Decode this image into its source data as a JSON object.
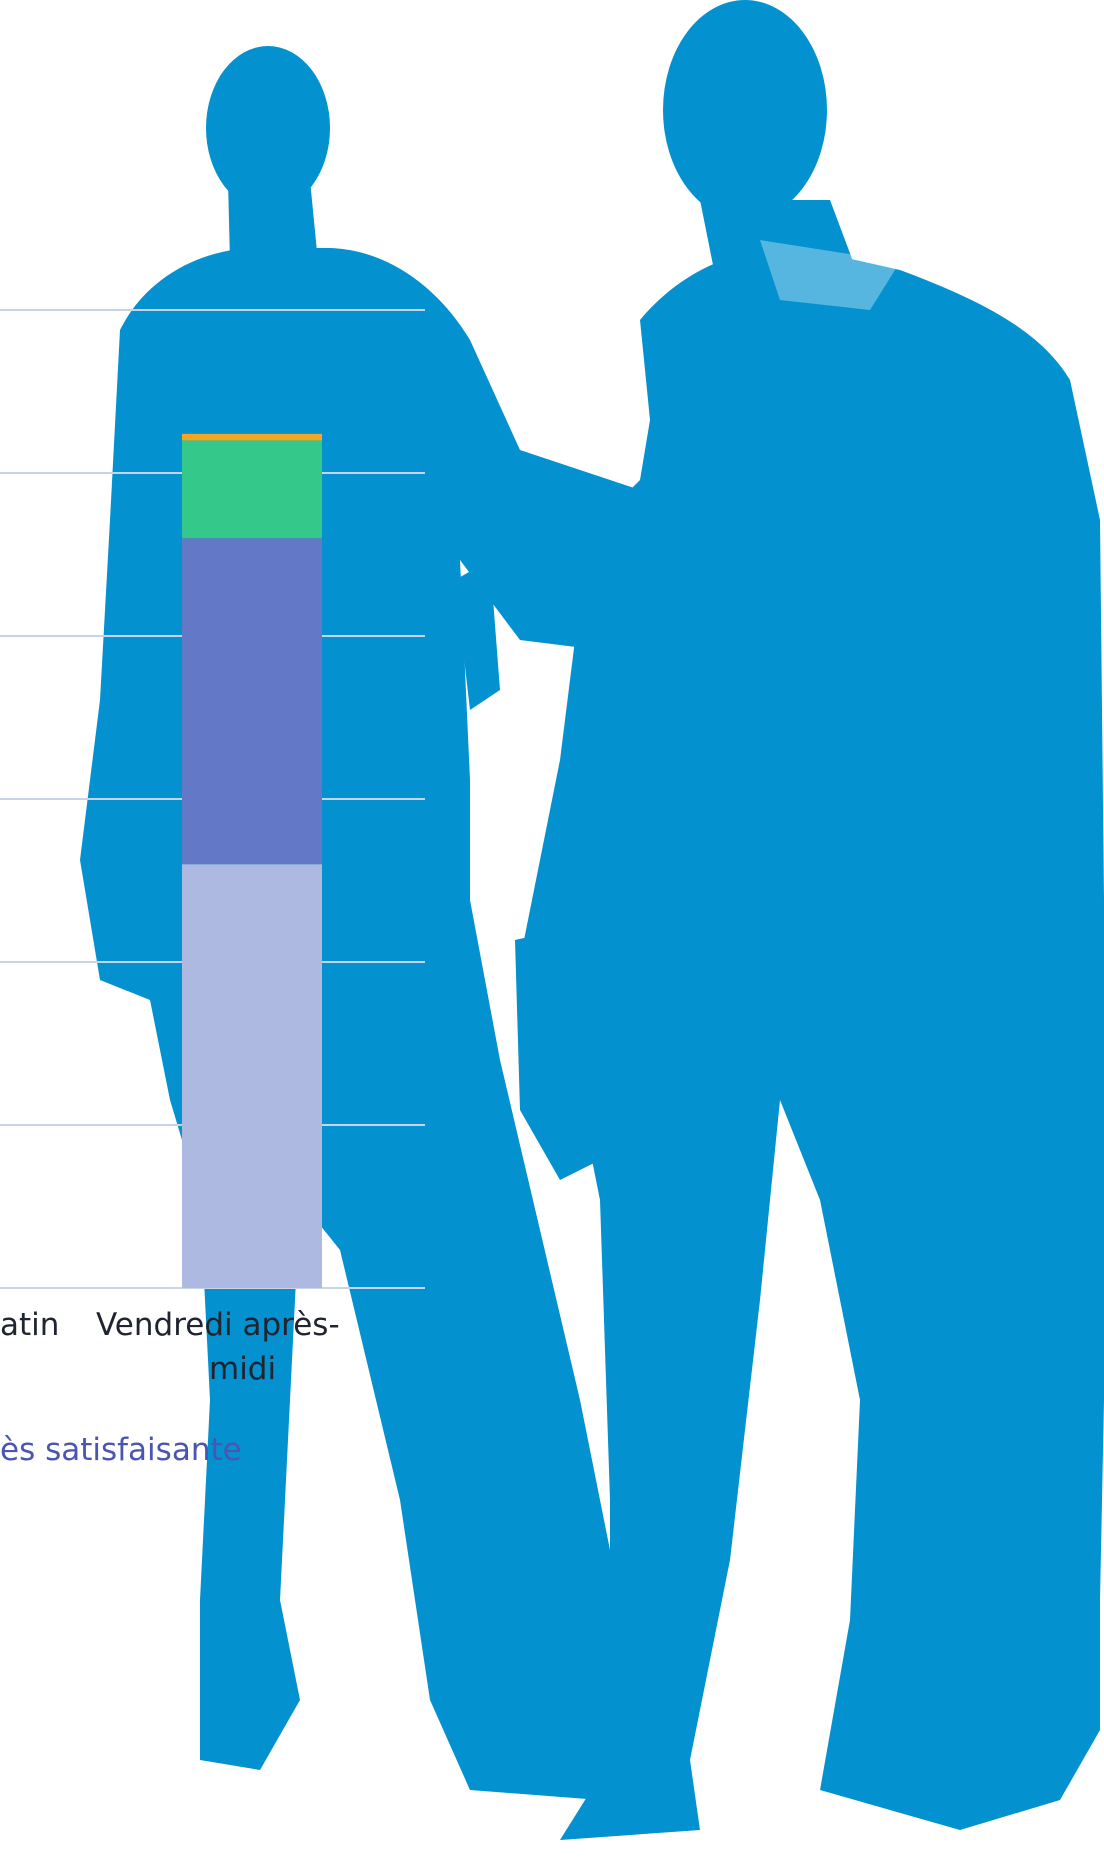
{
  "chart_data": {
    "type": "bar",
    "stacked": true,
    "grid": true,
    "categories": [
      "…tin",
      "Vendredi après-\nmidi"
    ],
    "tick_text": {
      "left_partial": "atin",
      "right_line1": "Vendredi après-",
      "right_line2": "midi"
    },
    "ylim": [
      0,
      6
    ],
    "series": [
      {
        "name": "",
        "color": "#aeb9e2",
        "values": [
          null,
          2.6
        ]
      },
      {
        "name": "",
        "color": "#6378c7",
        "values": [
          null,
          2.0
        ]
      },
      {
        "name": "",
        "color": "#34c98a",
        "values": [
          null,
          0.6
        ]
      },
      {
        "name": "",
        "color": "#f5a623",
        "values": [
          null,
          0.04
        ]
      }
    ],
    "legend": {
      "position": "bottom",
      "visible_text": "ès satisfaisante"
    }
  },
  "background": {
    "silhouette_color": "#0392cf"
  }
}
